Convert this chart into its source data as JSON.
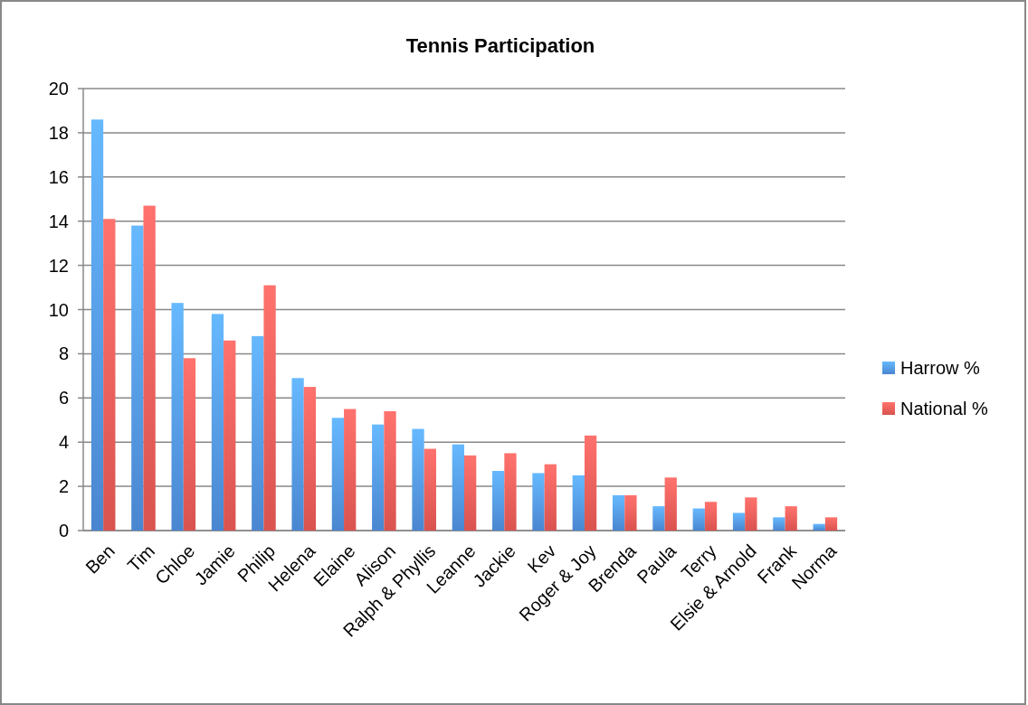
{
  "chart_data": {
    "type": "bar",
    "title": "Tennis Participation",
    "categories": [
      "Ben",
      "Tim",
      "Chloe",
      "Jamie",
      "Philip",
      "Helena",
      "Elaine",
      "Alison",
      "Ralph & Phyllis",
      "Leanne",
      "Jackie",
      "Kev",
      "Roger & Joy",
      "Brenda",
      "Paula",
      "Terry",
      "Elsie & Arnold",
      "Frank",
      "Norma"
    ],
    "series": [
      {
        "name": "Harrow %",
        "color": "#4a86d0",
        "values": [
          18.6,
          13.8,
          10.3,
          9.8,
          8.8,
          6.9,
          5.1,
          4.8,
          4.6,
          3.9,
          2.7,
          2.6,
          2.5,
          1.6,
          1.1,
          1.0,
          0.8,
          0.6,
          0.3
        ]
      },
      {
        "name": "National %",
        "color": "#d9534f",
        "values": [
          14.1,
          14.7,
          7.8,
          8.6,
          11.1,
          6.5,
          5.5,
          5.4,
          3.7,
          3.4,
          3.5,
          3.0,
          4.3,
          1.6,
          2.4,
          1.3,
          1.5,
          1.1,
          0.6
        ]
      }
    ],
    "ylim": [
      0,
      20
    ],
    "yticks": [
      0,
      2,
      4,
      6,
      8,
      10,
      12,
      14,
      16,
      18,
      20
    ],
    "grid": "y",
    "legend": "right"
  }
}
